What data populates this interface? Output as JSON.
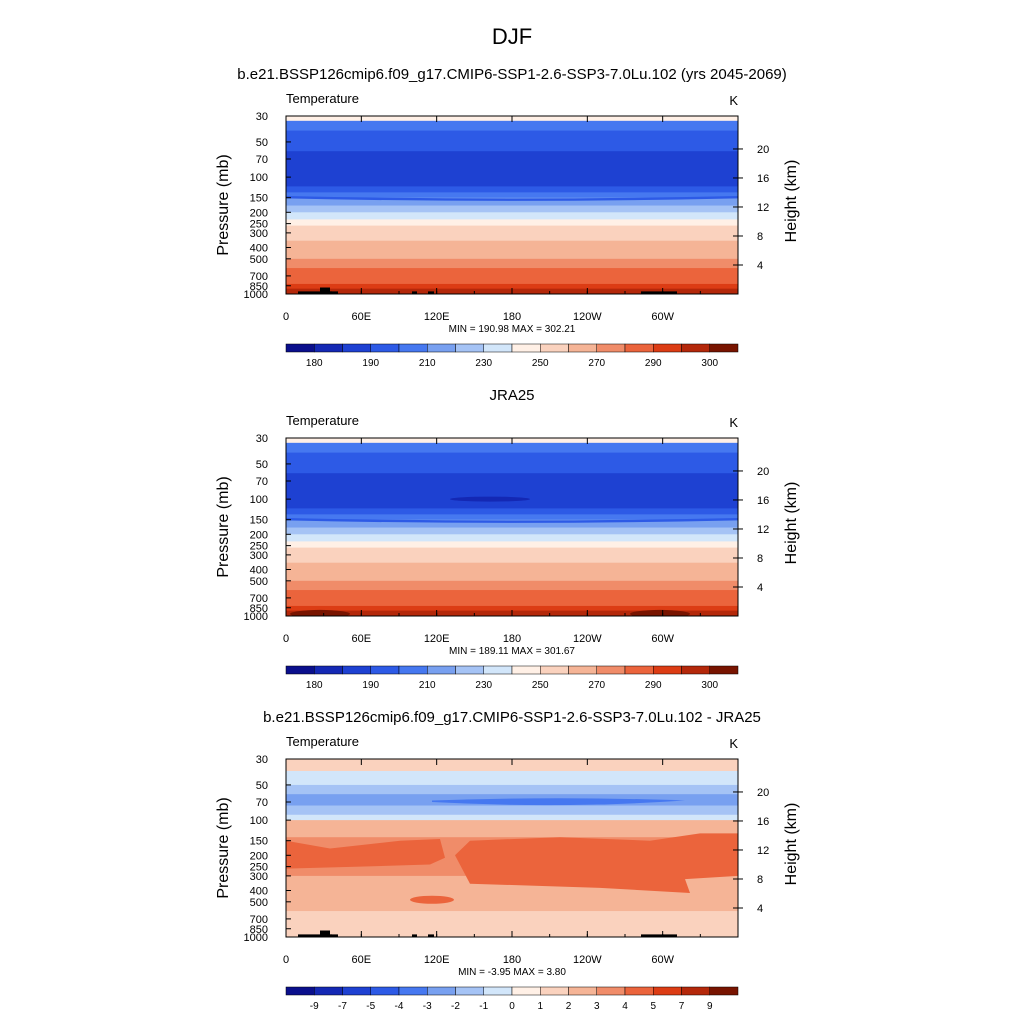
{
  "figure": {
    "title": "DJF"
  },
  "colors": {
    "temperature_scale": [
      "#0a0f8c",
      "#1428b4",
      "#1e41d2",
      "#2d5ae6",
      "#4678f0",
      "#78a0f0",
      "#a5c3f5",
      "#d2e6fa",
      "#fff0e6",
      "#fad2be",
      "#f5b496",
      "#f08c69",
      "#eb643c",
      "#dc3c14",
      "#b4280a",
      "#781400"
    ],
    "diff_scale": [
      "#0a0f8c",
      "#1428b4",
      "#1e41d2",
      "#2d5ae6",
      "#4678f0",
      "#78a0f0",
      "#a5c3f5",
      "#d2e6fa",
      "#fff0e6",
      "#fad2be",
      "#f5b496",
      "#f08c69",
      "#eb643c",
      "#dc3c14",
      "#b4280a",
      "#781400"
    ]
  },
  "chart_data": [
    {
      "type": "heatmap",
      "title": "b.e21.BSSP126cmip6.f09_g17.CMIP6-SSP1-2.6-SSP3-7.0Lu.102 (yrs 2045-2069)",
      "left_label": "Temperature",
      "units": "K",
      "ylabel": "Pressure (mb)",
      "ylabel_right": "Height (km)",
      "x_ticks": [
        "0",
        "60E",
        "120E",
        "180",
        "120W",
        "60W"
      ],
      "y_ticks": [
        "30",
        "50",
        "70",
        "100",
        "150",
        "200",
        "250",
        "300",
        "400",
        "500",
        "700",
        "850",
        "1000"
      ],
      "y_right_ticks": [
        "20",
        "16",
        "12",
        "8",
        "4"
      ],
      "stats": "MIN = 190.98  MAX = 302.21",
      "colorbar_labels": [
        "180",
        "190",
        "210",
        "230",
        "250",
        "270",
        "290",
        "300"
      ],
      "band_levels": [
        0,
        3,
        2,
        1,
        0,
        0,
        0,
        1,
        2,
        3,
        4,
        5,
        6,
        7,
        8,
        9,
        10,
        11,
        12,
        13,
        14,
        15
      ],
      "topography": true
    },
    {
      "type": "heatmap",
      "title": "JRA25",
      "left_label": "Temperature",
      "units": "K",
      "ylabel": "Pressure (mb)",
      "ylabel_right": "Height (km)",
      "x_ticks": [
        "0",
        "60E",
        "120E",
        "180",
        "120W",
        "60W"
      ],
      "y_ticks": [
        "30",
        "50",
        "70",
        "100",
        "150",
        "200",
        "250",
        "300",
        "400",
        "500",
        "700",
        "850",
        "1000"
      ],
      "y_right_ticks": [
        "20",
        "16",
        "12",
        "8",
        "4"
      ],
      "stats": "MIN = 189.11  MAX = 301.67",
      "colorbar_labels": [
        "180",
        "190",
        "210",
        "230",
        "250",
        "270",
        "290",
        "300"
      ],
      "band_levels": [
        0,
        3,
        2,
        1,
        0,
        0,
        0,
        1,
        2,
        3,
        4,
        5,
        6,
        7,
        8,
        9,
        10,
        11,
        12,
        13,
        14,
        15
      ],
      "topography": false
    },
    {
      "type": "heatmap",
      "title": "b.e21.BSSP126cmip6.f09_g17.CMIP6-SSP1-2.6-SSP3-7.0Lu.102 - JRA25",
      "left_label": "Temperature",
      "units": "K",
      "ylabel": "Pressure (mb)",
      "ylabel_right": "Height (km)",
      "x_ticks": [
        "0",
        "60E",
        "120E",
        "180",
        "120W",
        "60W"
      ],
      "y_ticks": [
        "30",
        "50",
        "70",
        "100",
        "150",
        "200",
        "250",
        "300",
        "400",
        "500",
        "700",
        "850",
        "1000"
      ],
      "y_right_ticks": [
        "20",
        "16",
        "12",
        "8",
        "4"
      ],
      "stats": "MIN =  -3.95  MAX =   3.80",
      "colorbar_labels": [
        "-9",
        "-7",
        "-5",
        "-4",
        "-3",
        "-2",
        "-1",
        "0",
        "1",
        "2",
        "3",
        "4",
        "5",
        "7",
        "9"
      ],
      "topography": true
    }
  ]
}
